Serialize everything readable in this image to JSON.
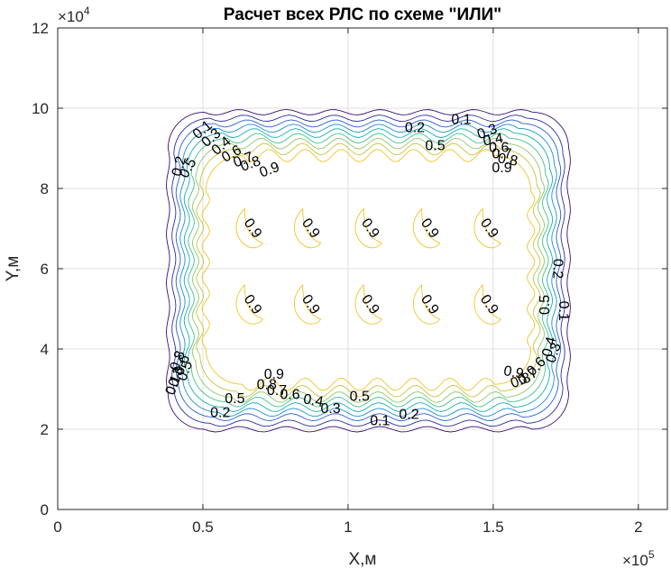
{
  "chart_data": {
    "type": "contour",
    "title": "Расчет всех РЛС по схеме \"ИЛИ\"",
    "xlabel": "X,м",
    "ylabel": "Y,м",
    "x_multiplier_label": "×10",
    "x_multiplier_exp": "5",
    "y_multiplier_label": "×10",
    "y_multiplier_exp": "4",
    "xlim": [
      0,
      2.1
    ],
    "ylim": [
      0,
      12
    ],
    "x_ticks": [
      0,
      0.5,
      1,
      1.5,
      2
    ],
    "x_tick_labels": [
      "0",
      "0.5",
      "1",
      "1.5",
      "2"
    ],
    "y_ticks": [
      0,
      2,
      4,
      6,
      8,
      10,
      12
    ],
    "y_tick_labels": [
      "0",
      "2",
      "4",
      "6",
      "8",
      "10",
      "12"
    ],
    "grid": true,
    "levels": [
      0.1,
      0.2,
      0.3,
      0.4,
      0.5,
      0.6,
      0.7,
      0.8,
      0.9
    ],
    "level_colors": [
      "#3b0f70",
      "#2c2ea5",
      "#2a5fcf",
      "#1f8fd1",
      "#14b0b0",
      "#42c18a",
      "#8cc96a",
      "#c9c23f",
      "#f0c42a"
    ],
    "contours": [
      {
        "level": 0.1,
        "x_min": 0.38,
        "x_max": 1.76,
        "y_min": 2.0,
        "y_max": 9.9
      },
      {
        "level": 0.2,
        "x_min": 0.4,
        "x_max": 1.74,
        "y_min": 2.15,
        "y_max": 9.75
      },
      {
        "level": 0.3,
        "x_min": 0.415,
        "x_max": 1.725,
        "y_min": 2.3,
        "y_max": 9.62
      },
      {
        "level": 0.4,
        "x_min": 0.43,
        "x_max": 1.71,
        "y_min": 2.42,
        "y_max": 9.5
      },
      {
        "level": 0.5,
        "x_min": 0.445,
        "x_max": 1.695,
        "y_min": 2.55,
        "y_max": 9.38
      },
      {
        "level": 0.6,
        "x_min": 0.46,
        "x_max": 1.68,
        "y_min": 2.68,
        "y_max": 9.25
      },
      {
        "level": 0.7,
        "x_min": 0.475,
        "x_max": 1.665,
        "y_min": 2.8,
        "y_max": 9.12
      },
      {
        "level": 0.8,
        "x_min": 0.49,
        "x_max": 1.65,
        "y_min": 2.95,
        "y_max": 8.98
      },
      {
        "level": 0.9,
        "x_min": 0.51,
        "x_max": 1.63,
        "y_min": 3.12,
        "y_max": 8.82
      }
    ],
    "islands_level": 0.9,
    "islands": [
      {
        "x": 0.65,
        "y": 7.0
      },
      {
        "x": 0.85,
        "y": 7.0
      },
      {
        "x": 1.06,
        "y": 7.0
      },
      {
        "x": 1.26,
        "y": 7.0
      },
      {
        "x": 1.47,
        "y": 7.0
      },
      {
        "x": 0.65,
        "y": 5.1
      },
      {
        "x": 0.85,
        "y": 5.1
      },
      {
        "x": 1.06,
        "y": 5.1
      },
      {
        "x": 1.26,
        "y": 5.1
      },
      {
        "x": 1.47,
        "y": 5.1
      }
    ],
    "contour_labels": [
      {
        "text": "0.1",
        "x": 0.5,
        "y": 9.45,
        "rot": -40
      },
      {
        "text": "0.3",
        "x": 0.53,
        "y": 9.25,
        "rot": -40
      },
      {
        "text": "0.4",
        "x": 0.565,
        "y": 9.05,
        "rot": -40
      },
      {
        "text": "0.6",
        "x": 0.6,
        "y": 8.85,
        "rot": -30
      },
      {
        "text": "0.7",
        "x": 0.64,
        "y": 8.7,
        "rot": -20
      },
      {
        "text": "0.8",
        "x": 0.665,
        "y": 8.6,
        "rot": -20
      },
      {
        "text": "0.9",
        "x": 0.73,
        "y": 8.45,
        "rot": -20
      },
      {
        "text": "0.2",
        "x": 0.42,
        "y": 8.55,
        "rot": -75
      },
      {
        "text": "0.5",
        "x": 0.45,
        "y": 8.5,
        "rot": -60
      },
      {
        "text": "0.2",
        "x": 1.23,
        "y": 9.5,
        "rot": 0
      },
      {
        "text": "0.1",
        "x": 1.39,
        "y": 9.7,
        "rot": 0
      },
      {
        "text": "0.5",
        "x": 1.3,
        "y": 9.05,
        "rot": 0
      },
      {
        "text": "0.3",
        "x": 1.48,
        "y": 9.4,
        "rot": -20
      },
      {
        "text": "0.4",
        "x": 1.5,
        "y": 9.2,
        "rot": -10
      },
      {
        "text": "0.6",
        "x": 1.52,
        "y": 9.0,
        "rot": 0
      },
      {
        "text": "0.7",
        "x": 1.53,
        "y": 8.85,
        "rot": 0
      },
      {
        "text": "0.8",
        "x": 1.55,
        "y": 8.7,
        "rot": 10
      },
      {
        "text": "0.9",
        "x": 1.53,
        "y": 8.5,
        "rot": 0
      },
      {
        "text": "0.9",
        "x": 0.67,
        "y": 7.0,
        "rot": 55
      },
      {
        "text": "0.9",
        "x": 0.87,
        "y": 7.0,
        "rot": 55
      },
      {
        "text": "0.9",
        "x": 1.075,
        "y": 7.0,
        "rot": 55
      },
      {
        "text": "0.9",
        "x": 1.28,
        "y": 7.0,
        "rot": 55
      },
      {
        "text": "0.9",
        "x": 1.485,
        "y": 7.0,
        "rot": 55
      },
      {
        "text": "0.9",
        "x": 0.67,
        "y": 5.1,
        "rot": 55
      },
      {
        "text": "0.9",
        "x": 0.87,
        "y": 5.1,
        "rot": 55
      },
      {
        "text": "0.9",
        "x": 1.075,
        "y": 5.1,
        "rot": 55
      },
      {
        "text": "0.9",
        "x": 1.28,
        "y": 5.1,
        "rot": 55
      },
      {
        "text": "0.9",
        "x": 1.485,
        "y": 5.1,
        "rot": 55
      },
      {
        "text": "0.2",
        "x": 1.72,
        "y": 6.0,
        "rot": 90
      },
      {
        "text": "0.1",
        "x": 1.74,
        "y": 4.95,
        "rot": 90
      },
      {
        "text": "0.5",
        "x": 1.68,
        "y": 5.1,
        "rot": -90
      },
      {
        "text": "0.4",
        "x": 1.695,
        "y": 4.05,
        "rot": -75
      },
      {
        "text": "0.3",
        "x": 1.71,
        "y": 3.9,
        "rot": -70
      },
      {
        "text": "0.6",
        "x": 1.65,
        "y": 3.55,
        "rot": -45
      },
      {
        "text": "0.7",
        "x": 1.62,
        "y": 3.3,
        "rot": -30
      },
      {
        "text": "0.8",
        "x": 1.595,
        "y": 3.2,
        "rot": -20
      },
      {
        "text": "0.9",
        "x": 1.57,
        "y": 3.4,
        "rot": 10
      },
      {
        "text": "0.9",
        "x": 0.745,
        "y": 3.35,
        "rot": 0
      },
      {
        "text": "0.8",
        "x": 0.72,
        "y": 3.1,
        "rot": 0
      },
      {
        "text": "0.7",
        "x": 0.755,
        "y": 2.95,
        "rot": 0
      },
      {
        "text": "0.6",
        "x": 0.8,
        "y": 2.85,
        "rot": 0
      },
      {
        "text": "0.5",
        "x": 0.61,
        "y": 2.75,
        "rot": 0
      },
      {
        "text": "0.4",
        "x": 0.88,
        "y": 2.7,
        "rot": 10
      },
      {
        "text": "0.3",
        "x": 0.94,
        "y": 2.5,
        "rot": 0
      },
      {
        "text": "0.5",
        "x": 1.04,
        "y": 2.8,
        "rot": 0
      },
      {
        "text": "0.2",
        "x": 0.56,
        "y": 2.4,
        "rot": 0
      },
      {
        "text": "0.2",
        "x": 1.21,
        "y": 2.35,
        "rot": 0
      },
      {
        "text": "0.1",
        "x": 1.11,
        "y": 2.2,
        "rot": 0
      },
      {
        "text": "0.8",
        "x": 0.415,
        "y": 3.7,
        "rot": -70
      },
      {
        "text": "0.6",
        "x": 0.43,
        "y": 3.6,
        "rot": -70
      },
      {
        "text": "0.5",
        "x": 0.44,
        "y": 3.45,
        "rot": -70
      },
      {
        "text": "0.3",
        "x": 0.41,
        "y": 3.3,
        "rot": -70
      },
      {
        "text": "0.1",
        "x": 0.4,
        "y": 3.1,
        "rot": -70
      }
    ]
  }
}
